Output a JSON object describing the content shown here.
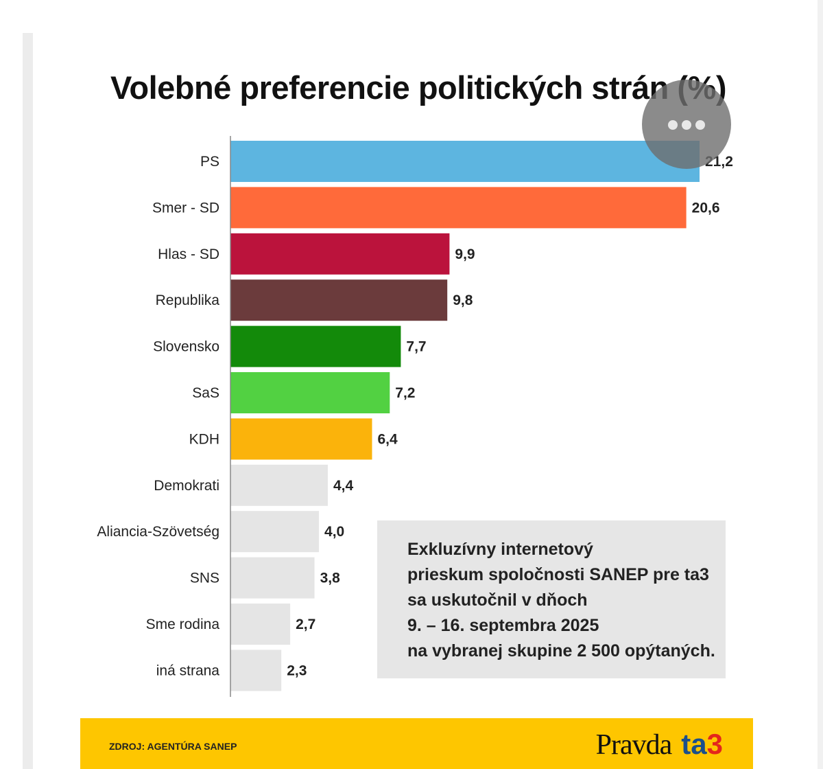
{
  "chart_data": {
    "type": "bar",
    "orientation": "horizontal",
    "title": "Volebné preferencie politických strán (%)",
    "categories": [
      "PS",
      "Smer - SD",
      "Hlas - SD",
      "Republika",
      "Slovensko",
      "SaS",
      "KDH",
      "Demokrati",
      "Aliancia-Szövetség",
      "SNS",
      "Sme rodina",
      "iná strana"
    ],
    "values": [
      21.2,
      20.6,
      9.9,
      9.8,
      7.7,
      7.2,
      6.4,
      4.4,
      4.0,
      3.8,
      2.7,
      2.3
    ],
    "value_labels": [
      "21,2",
      "20,6",
      "9,9",
      "9,8",
      "7,7",
      "7,2",
      "6,4",
      "4,4",
      "4,0",
      "3,8",
      "2,7",
      "2,3"
    ],
    "colors": [
      "#5db5e0",
      "#ff6a3a",
      "#bb133c",
      "#6b3b3c",
      "#138a0a",
      "#52d142",
      "#fbb30b",
      "#e5e5e5",
      "#e5e5e5",
      "#e5e5e5",
      "#e5e5e5",
      "#e5e5e5"
    ],
    "xlim": [
      0,
      21.2
    ],
    "grid": false,
    "legend": "none"
  },
  "note": [
    "Exkluzívny internetový",
    "prieskum spoločnosti SANEP pre ta3",
    "sa uskutočnil v dňoch",
    "9. – 16. septembra 2025",
    "na vybranej skupine 2 500 opýtaných."
  ],
  "footer": {
    "source": "ZDROJ: AGENTÚRA SANEP",
    "logo_pravda": "Pravda",
    "logo_ta": "ta",
    "logo_3": "3",
    "background": "#fec600"
  },
  "overlay": {
    "icon": "more-horizontal-icon"
  }
}
